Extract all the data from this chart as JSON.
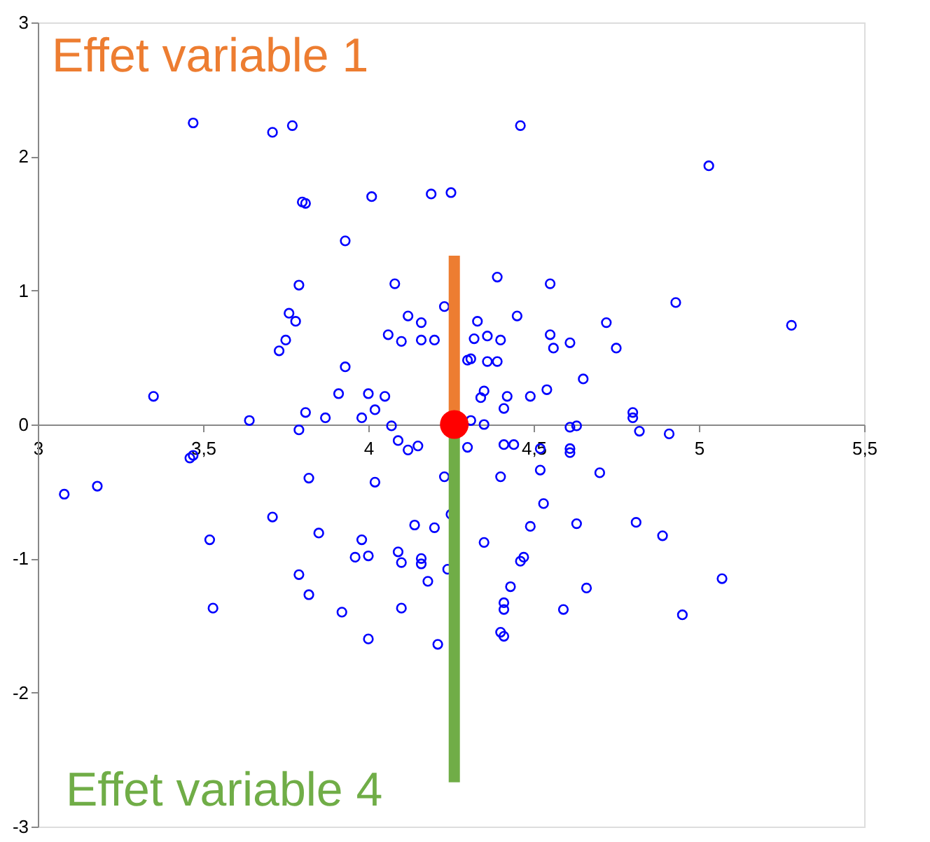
{
  "chart_data": {
    "type": "scatter",
    "xlim": [
      3,
      5.5
    ],
    "ylim": [
      -3,
      3
    ],
    "xticks": [
      3,
      {
        "value": 3.5,
        "label": "3,5"
      },
      4,
      {
        "value": 4.5,
        "label": "4,5"
      },
      5,
      {
        "value": 5.5,
        "label": "5,5"
      }
    ],
    "yticks": [
      -3,
      -2,
      -1,
      0,
      1,
      2,
      3
    ],
    "grid": false,
    "series": [
      {
        "marker": "circle",
        "color": "#0000ff",
        "x": [
          3.47,
          3.71,
          3.77,
          4.46,
          5.03,
          3.8,
          3.81,
          4.01,
          4.19,
          4.25,
          3.93,
          4.08,
          4.39,
          4.55,
          3.79,
          3.76,
          3.78,
          3.75,
          3.73,
          4.06,
          4.12,
          4.16,
          4.1,
          4.16,
          4.2,
          4.23,
          4.33,
          4.45,
          4.32,
          4.36,
          4.4,
          4.55,
          4.56,
          4.61,
          4.72,
          4.75,
          4.93,
          5.28,
          4.3,
          4.31,
          4.36,
          4.39,
          3.93,
          3.91,
          4.0,
          4.05,
          4.02,
          3.98,
          3.87,
          3.81,
          4.35,
          4.34,
          4.42,
          4.49,
          4.54,
          4.65,
          4.8,
          4.8,
          4.41,
          4.31,
          4.35,
          3.64,
          3.35,
          3.79,
          4.61,
          4.63,
          4.82,
          4.91,
          4.07,
          4.09,
          4.12,
          4.15,
          4.3,
          4.41,
          4.44,
          4.52,
          4.61,
          4.61,
          3.46,
          3.47,
          3.08,
          3.18,
          3.82,
          4.02,
          4.23,
          4.4,
          4.52,
          4.7,
          3.71,
          3.85,
          3.98,
          4.14,
          4.2,
          4.25,
          4.35,
          4.49,
          4.53,
          4.63,
          4.81,
          4.89,
          3.52,
          3.79,
          3.82,
          3.96,
          4.0,
          4.09,
          4.1,
          4.16,
          4.16,
          4.18,
          4.24,
          4.46,
          4.47,
          4.43,
          4.41,
          4.41,
          4.4,
          4.41,
          4.66,
          4.59,
          5.07,
          4.95,
          3.53,
          3.92,
          4.1,
          4.0,
          4.21
        ],
        "values": [
          2.25,
          2.18,
          2.23,
          2.23,
          1.93,
          1.66,
          1.65,
          1.7,
          1.72,
          1.73,
          1.37,
          1.05,
          1.1,
          1.05,
          1.04,
          0.83,
          0.77,
          0.63,
          0.55,
          0.67,
          0.81,
          0.76,
          0.62,
          0.63,
          0.63,
          0.88,
          0.77,
          0.81,
          0.64,
          0.66,
          0.63,
          0.67,
          0.57,
          0.61,
          0.76,
          0.57,
          0.91,
          0.74,
          0.48,
          0.49,
          0.47,
          0.47,
          0.43,
          0.23,
          0.23,
          0.21,
          0.11,
          0.05,
          0.05,
          0.09,
          0.25,
          0.2,
          0.21,
          0.21,
          0.26,
          0.34,
          0.09,
          0.05,
          0.12,
          0.03,
          0.0,
          0.03,
          0.21,
          -0.04,
          -0.02,
          -0.01,
          -0.05,
          -0.07,
          -0.01,
          -0.12,
          -0.19,
          -0.16,
          -0.17,
          -0.15,
          -0.15,
          -0.18,
          -0.18,
          -0.21,
          -0.25,
          -0.23,
          -0.52,
          -0.46,
          -0.4,
          -0.43,
          -0.39,
          -0.39,
          -0.34,
          -0.36,
          -0.69,
          -0.81,
          -0.86,
          -0.75,
          -0.77,
          -0.67,
          -0.88,
          -0.76,
          -0.59,
          -0.74,
          -0.73,
          -0.83,
          -0.86,
          -1.12,
          -1.27,
          -0.99,
          -0.98,
          -0.95,
          -1.03,
          -1.0,
          -1.04,
          -1.17,
          -1.08,
          -1.02,
          -0.99,
          -1.21,
          -1.38,
          -1.33,
          -1.55,
          -1.58,
          -1.22,
          -1.38,
          -1.15,
          -1.42,
          -1.37,
          -1.4,
          -1.37,
          -1.6,
          -1.64
        ]
      },
      {
        "type": "line",
        "name": "Effet variable 1",
        "color": "#ed7d31",
        "x": [
          4.26,
          4.26
        ],
        "values": [
          0,
          1.26
        ]
      },
      {
        "type": "line",
        "name": "Effet variable 4",
        "color": "#70ad47",
        "x": [
          4.26,
          4.26
        ],
        "values": [
          0,
          -2.67
        ]
      },
      {
        "marker": "circle",
        "color": "#ff0000",
        "x": [
          4.26
        ],
        "values": [
          0
        ]
      }
    ]
  }
}
